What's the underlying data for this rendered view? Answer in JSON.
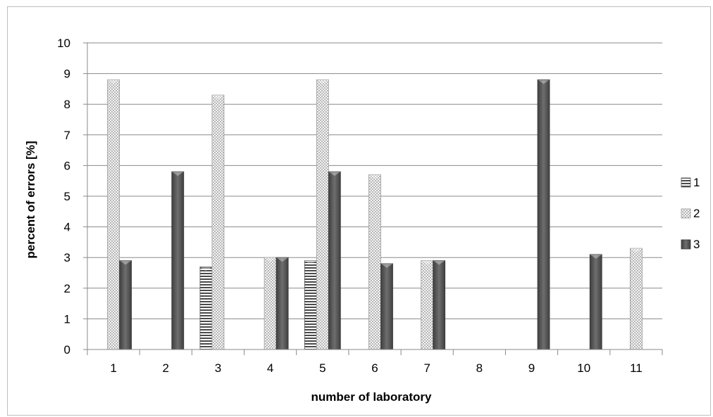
{
  "chart_data": {
    "type": "bar",
    "title": "",
    "xlabel": "number of laboratory",
    "ylabel": "percent of errors [%]",
    "ylim": [
      0,
      10
    ],
    "yticks": [
      "0",
      "1",
      "2",
      "3",
      "4",
      "5",
      "6",
      "7",
      "8",
      "9",
      "10"
    ],
    "categories": [
      "1",
      "2",
      "3",
      "4",
      "5",
      "6",
      "7",
      "8",
      "9",
      "10",
      "11"
    ],
    "series": [
      {
        "name": "1",
        "pattern": "horizontal-stripes",
        "color": "#ffffff",
        "stroke": "#555555",
        "values": [
          0,
          0,
          2.7,
          0,
          2.9,
          0,
          0,
          0,
          0,
          0,
          0
        ]
      },
      {
        "name": "2",
        "pattern": "dots",
        "color": "#e6e6e6",
        "stroke": "#9a9a9a",
        "values": [
          8.8,
          0,
          8.3,
          3.0,
          8.8,
          5.7,
          2.9,
          0,
          0,
          0,
          3.3
        ]
      },
      {
        "name": "3",
        "pattern": "solid",
        "color": "#5a5a5a",
        "stroke": "#3a3a3a",
        "values": [
          2.9,
          5.8,
          0,
          3.0,
          5.8,
          2.8,
          2.9,
          0,
          8.8,
          3.1,
          0
        ]
      }
    ],
    "grid": true,
    "legend": "right"
  }
}
